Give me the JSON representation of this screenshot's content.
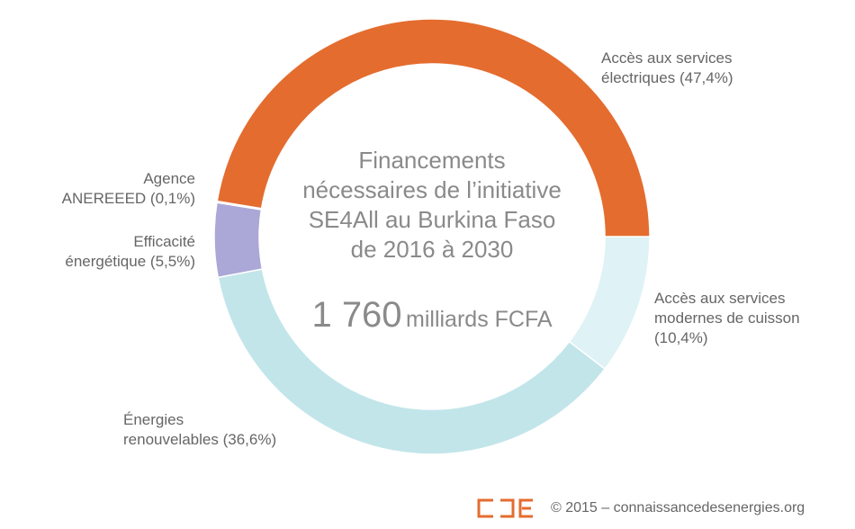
{
  "chart_data": {
    "type": "donut",
    "title": "Financements\nnécessaires de l’initiative\nSE4All au Burkina Faso\nde 2016 à 2030",
    "total": {
      "value": 1760,
      "label": "1 760"
    },
    "total_unit": "milliards FCFA",
    "categories": [
      "Accès aux services\nmodernes de cuisson",
      "Énergies\nrenouvelables",
      "Efficacité\nénergétique",
      "Agence\nANEREEED",
      "Accès aux services\nélectriques"
    ],
    "values": [
      10.4,
      36.6,
      5.5,
      0.1,
      47.4
    ],
    "value_labels": [
      "(10,4%)",
      "(36,6%)",
      "(5,5%)",
      "(0,1%)",
      "(47,4%)"
    ],
    "colors": [
      "#dff2f5",
      "#c2e5ea",
      "#aba7d7",
      "#7b76a8",
      "#e46c2f"
    ],
    "credit": "© 2015 – connaissancedesenergies.org"
  }
}
